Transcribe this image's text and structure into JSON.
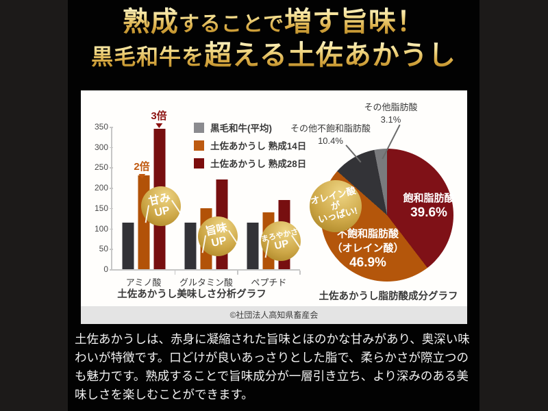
{
  "title": {
    "line1": [
      {
        "t": "熟成",
        "em": true
      },
      {
        "t": "することで",
        "em": false
      },
      {
        "t": "増す旨味！",
        "em": true
      }
    ],
    "line2": [
      {
        "t": "黒毛和牛を",
        "em": false
      },
      {
        "t": "超える土佐あかうし",
        "em": true
      }
    ]
  },
  "panel": {
    "copyright": "©社団法人高知県畜産会"
  },
  "chart_data": [
    {
      "type": "bar",
      "title": "土佐あかうし美味しさ分析グラフ",
      "categories": [
        "アミノ酸",
        "グルタミン酸",
        "ペプチド"
      ],
      "series": [
        {
          "name": "黒毛和牛(平均)",
          "bar_color": "#323237",
          "swatch_color": "#8b8b8f",
          "values": [
            115,
            115,
            115
          ]
        },
        {
          "name": "土佐あかうし 熟成14日",
          "bar_color": "#b25208",
          "swatch_color": "#bd5a10",
          "values": [
            230,
            150,
            140
          ]
        },
        {
          "name": "土佐あかうし 熟成28日",
          "bar_color": "#770f10",
          "swatch_color": "#7c0d0d",
          "values": [
            345,
            220,
            170
          ]
        }
      ],
      "ylim": [
        0,
        350
      ],
      "yticks": [
        0,
        50,
        100,
        150,
        200,
        250,
        300,
        350
      ],
      "grid": false,
      "legend_position": "top-right",
      "annotations": [
        {
          "text": "2倍",
          "color": "#c0590f",
          "target": "土佐あかうし 熟成14日 アミノ酸"
        },
        {
          "text": "3倍",
          "color": "#8b1110",
          "target": "土佐あかうし 熟成28日 アミノ酸"
        }
      ],
      "badges": [
        {
          "line1": "甘み",
          "line2": "UP"
        },
        {
          "line1": "旨味",
          "line2": "UP"
        },
        {
          "line1": "まろやかさ",
          "line2": "UP"
        }
      ]
    },
    {
      "type": "pie",
      "title": "土佐あかうし脂肪酸成分グラフ",
      "start_angle_deg": 0,
      "direction": "clockwise",
      "slices": [
        {
          "label": "飽和脂肪酸",
          "pct": 39.6,
          "pct_label": "39.6%",
          "color": "#7f1117",
          "label_placement": "inside"
        },
        {
          "label": "不飽和脂肪酸（オレイン酸）",
          "label_line1": "不飽和脂肪酸",
          "label_line2": "（オレイン酸）",
          "pct": 46.9,
          "pct_label": "46.9%",
          "color": "#b4560b",
          "label_placement": "inside"
        },
        {
          "label": "その他不飽和脂肪酸",
          "pct": 10.4,
          "pct_label": "10.4%",
          "color": "#333337",
          "label_placement": "outside"
        },
        {
          "label": "その他脂肪酸",
          "pct": 3.1,
          "pct_label": "3.1%",
          "color": "#797a7d",
          "label_placement": "outside"
        }
      ],
      "badge": {
        "line1": "オレイン酸が",
        "line2": "いっぱい!"
      }
    }
  ],
  "description": "土佐あかうしは、赤身に凝縮された旨味とほのかな甘みがあり、奥深い味わいが特徴です。口どけが良いあっさりとした脂で、柔らかさが際立つのも魅力です。熟成することで旨味成分が一層引き立ち、より深みのある美味しさを楽しむことができます。",
  "accent_colors": {
    "gold_badge": "#cda747",
    "title_gold": "#d9ab45",
    "background_outer": "#1c1a19",
    "background_inner": "#020202"
  }
}
